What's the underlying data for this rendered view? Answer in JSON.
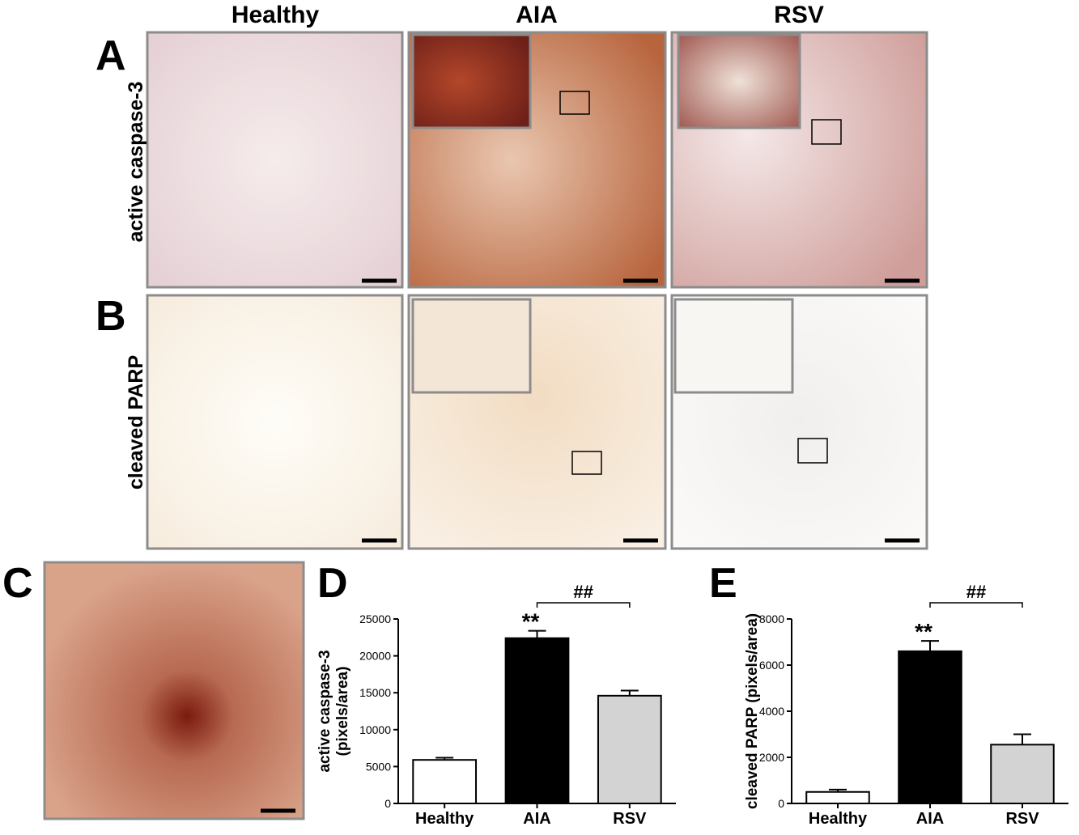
{
  "figure": {
    "column_headers": [
      "Healthy",
      "AIA",
      "RSV"
    ],
    "row_labels": [
      "active caspase-3",
      "cleaved PARP"
    ],
    "panel_labels": [
      "A",
      "B",
      "C",
      "D",
      "E"
    ]
  },
  "chart_data": [
    {
      "type": "bar",
      "ylabel": [
        "active caspase-3",
        "(pixels/area)"
      ],
      "categories": [
        "Healthy",
        "AIA",
        "RSV"
      ],
      "values": [
        5900,
        22400,
        14600
      ],
      "errors": [
        300,
        1000,
        700
      ],
      "colors": [
        "#ffffff",
        "#000000",
        "#d3d3d3"
      ],
      "ylim": [
        0,
        25000
      ],
      "yticks": [
        0,
        5000,
        10000,
        15000,
        20000,
        25000
      ],
      "star_label": "**",
      "bracket_label": "##"
    },
    {
      "type": "bar",
      "ylabel": [
        "cleaved PARP (pixels/area)"
      ],
      "categories": [
        "Healthy",
        "AIA",
        "RSV"
      ],
      "values": [
        500,
        6600,
        2550
      ],
      "errors": [
        100,
        450,
        450
      ],
      "colors": [
        "#ffffff",
        "#000000",
        "#d3d3d3"
      ],
      "ylim": [
        0,
        8000
      ],
      "yticks": [
        0,
        2000,
        4000,
        6000,
        8000
      ],
      "star_label": "**",
      "bracket_label": "##"
    }
  ]
}
